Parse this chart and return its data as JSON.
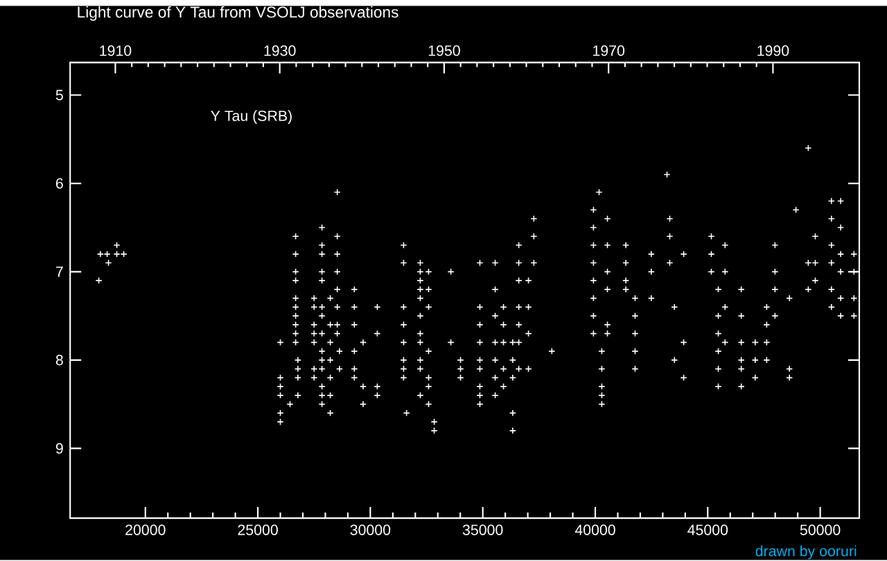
{
  "chart_data": {
    "type": "scatter",
    "title": "Light curve of Y Tau from VSOLJ observations",
    "annotations": [
      "Y Tau (SRB)",
      "drawn by ooruri"
    ],
    "marker": "cross",
    "xlim": [
      16655,
      51737
    ],
    "xticks": [
      20000,
      25000,
      30000,
      35000,
      40000,
      45000,
      50000
    ],
    "x2lim": [
      1904.5,
      2000.5
    ],
    "x2ticks": [
      1910,
      1930,
      1950,
      1970,
      1990
    ],
    "ylim": [
      9.79,
      4.63
    ],
    "yticks": [
      5,
      6,
      7,
      8,
      9
    ],
    "series": [
      {
        "color": "#ffffff",
        "x": [
          17930,
          18000,
          18300,
          18360,
          18730,
          18730,
          19040,
          26000,
          26000,
          26000,
          26000,
          26000,
          26000,
          26430,
          26680,
          26680,
          26680,
          26680,
          26680,
          26680,
          26680,
          26680,
          26680,
          26680,
          26780,
          26780,
          26780,
          26780,
          27500,
          27500,
          27500,
          27500,
          27500,
          27500,
          27500,
          27850,
          27850,
          27850,
          27850,
          27850,
          27850,
          27850,
          27850,
          27850,
          27850,
          27850,
          27850,
          27850,
          27850,
          28220,
          28220,
          28220,
          28220,
          28220,
          28220,
          28220,
          28530,
          28530,
          28530,
          28530,
          28530,
          28530,
          28530,
          28530,
          28630,
          28630,
          29290,
          29290,
          29290,
          29290,
          29290,
          29290,
          29680,
          29680,
          29680,
          30310,
          30310,
          30310,
          30310,
          31480,
          31480,
          31480,
          31480,
          31480,
          31480,
          31480,
          31480,
          31610,
          32220,
          32220,
          32220,
          32220,
          32220,
          32220,
          32220,
          32220,
          32220,
          32220,
          32220,
          32590,
          32590,
          32590,
          32590,
          32590,
          32590,
          32590,
          32840,
          32840,
          33580,
          33580,
          34010,
          34010,
          34010,
          34870,
          34870,
          34870,
          34870,
          34870,
          34870,
          34870,
          34870,
          34870,
          35550,
          35550,
          35550,
          35550,
          35550,
          35550,
          35550,
          35920,
          35920,
          35920,
          35920,
          35920,
          36330,
          36330,
          36330,
          36330,
          36330,
          36600,
          36600,
          36600,
          36600,
          36600,
          36600,
          36600,
          37030,
          37030,
          37030,
          37030,
          37270,
          37270,
          37270,
          38070,
          39920,
          39920,
          39920,
          39920,
          39920,
          39920,
          39920,
          39920,
          40170,
          40290,
          40290,
          40290,
          40290,
          40290,
          40540,
          40540,
          40540,
          40540,
          40540,
          40540,
          41360,
          41360,
          41360,
          41360,
          41770,
          41770,
          41770,
          41770,
          41770,
          42490,
          42490,
          42490,
          43190,
          43310,
          43310,
          43310,
          43520,
          43520,
          43930,
          43930,
          43930,
          45160,
          45160,
          45160,
          45470,
          45470,
          45470,
          45470,
          45470,
          45470,
          45770,
          45770,
          45770,
          45770,
          46490,
          46490,
          46490,
          46490,
          46490,
          46490,
          47110,
          47110,
          47110,
          47620,
          47620,
          47620,
          47620,
          47990,
          47990,
          47990,
          47990,
          48630,
          48630,
          48630,
          48920,
          49470,
          49470,
          49470,
          49780,
          49780,
          49780,
          50500,
          50500,
          50500,
          50500,
          50500,
          50500,
          50910,
          50910,
          50910,
          50910,
          50910,
          50910,
          51500,
          51500,
          51500,
          51500
        ],
        "values": [
          7.1,
          6.8,
          6.8,
          6.9,
          6.8,
          6.7,
          6.8,
          7.8,
          8.2,
          8.3,
          8.4,
          8.6,
          8.7,
          8.5,
          6.6,
          6.8,
          7.0,
          7.1,
          7.3,
          7.4,
          7.5,
          7.6,
          7.7,
          7.8,
          8.0,
          8.1,
          8.2,
          8.4,
          7.3,
          7.4,
          7.6,
          7.7,
          7.8,
          8.1,
          8.2,
          6.5,
          6.7,
          6.8,
          7.0,
          7.1,
          7.4,
          7.5,
          7.7,
          7.9,
          8.0,
          8.1,
          8.3,
          8.4,
          8.5,
          7.3,
          7.6,
          7.8,
          8.0,
          8.2,
          8.4,
          8.6,
          6.1,
          6.6,
          6.8,
          7.0,
          7.2,
          7.4,
          7.6,
          7.7,
          7.9,
          8.1,
          7.2,
          7.4,
          7.6,
          7.9,
          8.1,
          8.2,
          7.8,
          8.3,
          8.5,
          7.4,
          7.7,
          8.3,
          8.4,
          6.7,
          6.9,
          7.4,
          7.6,
          7.8,
          8.0,
          8.1,
          8.2,
          8.6,
          6.9,
          7.0,
          7.1,
          7.2,
          7.3,
          7.5,
          7.7,
          7.8,
          8.0,
          8.1,
          8.4,
          7.0,
          7.2,
          7.4,
          7.9,
          8.2,
          8.3,
          8.5,
          8.7,
          8.8,
          7.0,
          7.8,
          8.0,
          8.1,
          8.2,
          6.9,
          7.4,
          7.6,
          7.8,
          8.0,
          8.1,
          8.3,
          8.4,
          8.5,
          6.9,
          7.2,
          7.5,
          7.8,
          8.0,
          8.2,
          8.4,
          7.4,
          7.6,
          7.8,
          8.1,
          8.3,
          7.8,
          8.0,
          8.2,
          8.6,
          8.8,
          6.7,
          6.9,
          7.1,
          7.4,
          7.6,
          7.8,
          8.1,
          7.1,
          7.4,
          7.7,
          8.1,
          6.4,
          6.6,
          6.9,
          7.9,
          6.3,
          6.5,
          6.7,
          6.9,
          7.1,
          7.3,
          7.5,
          7.7,
          6.1,
          7.9,
          8.1,
          8.3,
          8.4,
          8.5,
          6.4,
          6.7,
          7.0,
          7.2,
          7.6,
          7.7,
          6.7,
          6.9,
          7.1,
          7.2,
          7.3,
          7.5,
          7.7,
          7.9,
          8.1,
          6.8,
          7.0,
          7.3,
          5.9,
          6.4,
          6.6,
          6.9,
          7.4,
          8.0,
          6.8,
          7.8,
          8.2,
          6.6,
          6.8,
          7.0,
          7.2,
          7.5,
          7.7,
          7.9,
          8.1,
          8.3,
          6.7,
          7.0,
          7.4,
          7.8,
          7.2,
          7.5,
          7.8,
          8.0,
          8.1,
          8.3,
          7.8,
          8.0,
          8.2,
          7.4,
          7.6,
          7.8,
          8.0,
          6.7,
          7.0,
          7.2,
          7.5,
          7.3,
          8.1,
          8.2,
          6.3,
          5.6,
          6.9,
          7.2,
          6.6,
          6.9,
          7.1,
          6.2,
          6.4,
          6.7,
          6.9,
          7.2,
          7.4,
          6.2,
          6.5,
          6.8,
          7.0,
          7.3,
          7.5,
          6.8,
          7.0,
          7.3,
          7.5
        ]
      }
    ]
  }
}
